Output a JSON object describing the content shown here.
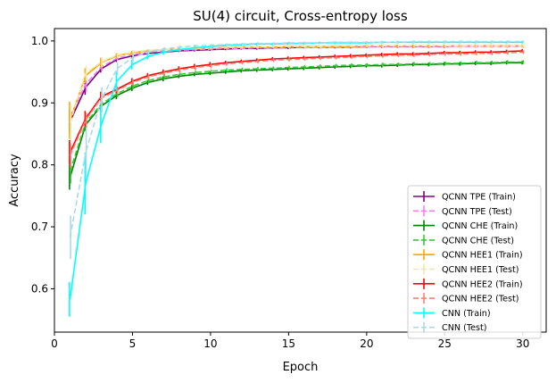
{
  "chart_data": {
    "type": "line",
    "title": "SU(4) circuit, Cross-entropy loss",
    "xlabel": "Epoch",
    "ylabel": "Accuracy",
    "xlim": [
      0,
      31.5
    ],
    "ylim": [
      0.53,
      1.02
    ],
    "xticks": [
      0,
      5,
      10,
      15,
      20,
      25,
      30
    ],
    "xtick_labels": [
      "0",
      "5",
      "10",
      "15",
      "20",
      "25",
      "30"
    ],
    "yticks": [
      0.6,
      0.7,
      0.8,
      0.9,
      1.0
    ],
    "ytick_labels": [
      "0.6",
      "0.7",
      "0.8",
      "0.9",
      "1.0"
    ],
    "grid": false,
    "legend_position": "lower-right",
    "x": [
      1,
      2,
      3,
      4,
      5,
      6,
      7,
      8,
      9,
      10,
      11,
      12,
      13,
      14,
      15,
      16,
      17,
      18,
      19,
      20,
      21,
      22,
      23,
      24,
      25,
      26,
      27,
      28,
      29,
      30
    ],
    "series": [
      {
        "name": "QCNN TPE (Train)",
        "color": "#800080",
        "dashed": false,
        "values": [
          0.87,
          0.925,
          0.955,
          0.97,
          0.976,
          0.98,
          0.982,
          0.984,
          0.985,
          0.986,
          0.987,
          0.988,
          0.988,
          0.989,
          0.989,
          0.99,
          0.99,
          0.99,
          0.99,
          0.991,
          0.991,
          0.991,
          0.991,
          0.991,
          0.991,
          0.992,
          0.992,
          0.992,
          0.992,
          0.992
        ],
        "err": [
          0.02,
          0.012,
          0.006,
          0.004,
          0.003,
          0.002,
          0.002,
          0.002,
          0.002,
          0.002,
          0.002,
          0.002,
          0.002,
          0.002,
          0.002,
          0.002,
          0.002,
          0.002,
          0.002,
          0.002,
          0.002,
          0.002,
          0.002,
          0.002,
          0.002,
          0.002,
          0.002,
          0.002,
          0.002,
          0.002
        ]
      },
      {
        "name": "QCNN TPE (Test)",
        "color": "#ee82ee",
        "dashed": true,
        "values": [
          0.878,
          0.93,
          0.958,
          0.972,
          0.978,
          0.982,
          0.984,
          0.985,
          0.986,
          0.987,
          0.988,
          0.988,
          0.989,
          0.989,
          0.99,
          0.99,
          0.99,
          0.99,
          0.99,
          0.99,
          0.991,
          0.991,
          0.991,
          0.991,
          0.991,
          0.991,
          0.991,
          0.991,
          0.991,
          0.991
        ],
        "err": [
          0.02,
          0.012,
          0.006,
          0.004,
          0.003,
          0.002,
          0.002,
          0.002,
          0.002,
          0.002,
          0.002,
          0.002,
          0.002,
          0.002,
          0.002,
          0.002,
          0.002,
          0.002,
          0.002,
          0.002,
          0.002,
          0.002,
          0.002,
          0.002,
          0.002,
          0.002,
          0.002,
          0.002,
          0.002,
          0.002
        ]
      },
      {
        "name": "QCNN CHE (Train)",
        "color": "#008000",
        "dashed": false,
        "values": [
          0.78,
          0.865,
          0.895,
          0.912,
          0.924,
          0.933,
          0.939,
          0.943,
          0.946,
          0.948,
          0.95,
          0.952,
          0.953,
          0.954,
          0.955,
          0.956,
          0.957,
          0.958,
          0.959,
          0.96,
          0.96,
          0.961,
          0.962,
          0.962,
          0.963,
          0.963,
          0.964,
          0.964,
          0.965,
          0.965
        ],
        "err": [
          0.02,
          0.01,
          0.008,
          0.006,
          0.005,
          0.004,
          0.004,
          0.003,
          0.003,
          0.003,
          0.003,
          0.003,
          0.003,
          0.003,
          0.003,
          0.003,
          0.003,
          0.003,
          0.003,
          0.003,
          0.003,
          0.003,
          0.003,
          0.003,
          0.003,
          0.003,
          0.003,
          0.003,
          0.003,
          0.003
        ]
      },
      {
        "name": "QCNN CHE (Test)",
        "color": "#32cd32",
        "dashed": true,
        "values": [
          0.79,
          0.868,
          0.898,
          0.915,
          0.927,
          0.936,
          0.942,
          0.946,
          0.949,
          0.951,
          0.953,
          0.954,
          0.955,
          0.956,
          0.957,
          0.958,
          0.959,
          0.96,
          0.961,
          0.961,
          0.962,
          0.962,
          0.963,
          0.963,
          0.964,
          0.964,
          0.965,
          0.965,
          0.966,
          0.966
        ],
        "err": [
          0.02,
          0.01,
          0.008,
          0.006,
          0.005,
          0.004,
          0.004,
          0.003,
          0.003,
          0.003,
          0.003,
          0.003,
          0.003,
          0.003,
          0.003,
          0.003,
          0.003,
          0.003,
          0.003,
          0.003,
          0.003,
          0.003,
          0.003,
          0.003,
          0.003,
          0.003,
          0.003,
          0.003,
          0.003,
          0.003
        ]
      },
      {
        "name": "QCNN HEE1 (Train)",
        "color": "#ffa500",
        "dashed": false,
        "values": [
          0.872,
          0.944,
          0.965,
          0.976,
          0.981,
          0.984,
          0.986,
          0.987,
          0.988,
          0.989,
          0.989,
          0.99,
          0.99,
          0.99,
          0.991,
          0.991,
          0.991,
          0.991,
          0.991,
          0.992,
          0.992,
          0.992,
          0.992,
          0.992,
          0.992,
          0.992,
          0.992,
          0.992,
          0.992,
          0.992
        ],
        "err": [
          0.03,
          0.012,
          0.008,
          0.004,
          0.003,
          0.002,
          0.002,
          0.002,
          0.002,
          0.002,
          0.002,
          0.002,
          0.002,
          0.002,
          0.002,
          0.002,
          0.002,
          0.002,
          0.002,
          0.002,
          0.002,
          0.002,
          0.002,
          0.002,
          0.002,
          0.002,
          0.002,
          0.002,
          0.002,
          0.002
        ]
      },
      {
        "name": "QCNN HEE1 (Test)",
        "color": "#eee8aa",
        "dashed": true,
        "values": [
          0.868,
          0.948,
          0.966,
          0.977,
          0.982,
          0.985,
          0.986,
          0.987,
          0.988,
          0.989,
          0.99,
          0.99,
          0.99,
          0.991,
          0.991,
          0.991,
          0.991,
          0.992,
          0.992,
          0.992,
          0.992,
          0.992,
          0.992,
          0.992,
          0.992,
          0.992,
          0.992,
          0.992,
          0.992,
          0.992
        ],
        "err": [
          0.03,
          0.012,
          0.008,
          0.004,
          0.003,
          0.002,
          0.002,
          0.002,
          0.002,
          0.002,
          0.002,
          0.002,
          0.002,
          0.002,
          0.002,
          0.002,
          0.002,
          0.002,
          0.002,
          0.002,
          0.002,
          0.002,
          0.002,
          0.002,
          0.002,
          0.002,
          0.002,
          0.002,
          0.002,
          0.002
        ]
      },
      {
        "name": "QCNN HEE2 (Train)",
        "color": "#ff0000",
        "dashed": false,
        "values": [
          0.82,
          0.875,
          0.91,
          0.922,
          0.935,
          0.944,
          0.95,
          0.955,
          0.959,
          0.962,
          0.965,
          0.967,
          0.969,
          0.971,
          0.972,
          0.973,
          0.974,
          0.975,
          0.976,
          0.977,
          0.978,
          0.979,
          0.979,
          0.98,
          0.981,
          0.981,
          0.982,
          0.982,
          0.983,
          0.984
        ],
        "err": [
          0.02,
          0.012,
          0.008,
          0.006,
          0.005,
          0.004,
          0.004,
          0.004,
          0.004,
          0.004,
          0.003,
          0.003,
          0.003,
          0.003,
          0.003,
          0.003,
          0.003,
          0.003,
          0.003,
          0.003,
          0.003,
          0.003,
          0.003,
          0.003,
          0.003,
          0.003,
          0.003,
          0.003,
          0.003,
          0.003
        ]
      },
      {
        "name": "QCNN HEE2 (Test)",
        "color": "#fa8072",
        "dashed": true,
        "values": [
          0.815,
          0.872,
          0.908,
          0.92,
          0.933,
          0.942,
          0.948,
          0.953,
          0.957,
          0.96,
          0.963,
          0.965,
          0.967,
          0.969,
          0.97,
          0.971,
          0.972,
          0.973,
          0.974,
          0.975,
          0.976,
          0.977,
          0.977,
          0.978,
          0.979,
          0.979,
          0.98,
          0.98,
          0.981,
          0.982
        ],
        "err": [
          0.02,
          0.012,
          0.008,
          0.006,
          0.005,
          0.004,
          0.004,
          0.004,
          0.004,
          0.004,
          0.003,
          0.003,
          0.003,
          0.003,
          0.003,
          0.003,
          0.003,
          0.003,
          0.003,
          0.003,
          0.003,
          0.003,
          0.003,
          0.003,
          0.003,
          0.003,
          0.003,
          0.003,
          0.003,
          0.003
        ]
      },
      {
        "name": "CNN (Train)",
        "color": "#00ffff",
        "dashed": false,
        "values": [
          0.583,
          0.77,
          0.865,
          0.935,
          0.962,
          0.975,
          0.982,
          0.986,
          0.989,
          0.991,
          0.993,
          0.994,
          0.995,
          0.995,
          0.996,
          0.996,
          0.997,
          0.997,
          0.997,
          0.997,
          0.998,
          0.998,
          0.998,
          0.998,
          0.998,
          0.998,
          0.998,
          0.998,
          0.998,
          0.998
        ],
        "err": [
          0.028,
          0.05,
          0.03,
          0.015,
          0.008,
          0.005,
          0.004,
          0.003,
          0.002,
          0.002,
          0.002,
          0.002,
          0.002,
          0.002,
          0.002,
          0.002,
          0.002,
          0.002,
          0.002,
          0.002,
          0.002,
          0.002,
          0.002,
          0.002,
          0.002,
          0.002,
          0.002,
          0.002,
          0.002,
          0.002
        ]
      },
      {
        "name": "CNN (Test)",
        "color": "#add8e6",
        "dashed": true,
        "values": [
          0.683,
          0.82,
          0.905,
          0.955,
          0.973,
          0.982,
          0.987,
          0.99,
          0.992,
          0.993,
          0.994,
          0.995,
          0.996,
          0.996,
          0.997,
          0.997,
          0.997,
          0.998,
          0.998,
          0.998,
          0.998,
          0.998,
          0.999,
          0.999,
          0.999,
          0.999,
          0.999,
          0.999,
          0.999,
          0.999
        ],
        "err": [
          0.035,
          0.04,
          0.02,
          0.01,
          0.006,
          0.004,
          0.003,
          0.003,
          0.002,
          0.002,
          0.002,
          0.002,
          0.002,
          0.002,
          0.002,
          0.002,
          0.002,
          0.002,
          0.002,
          0.002,
          0.002,
          0.002,
          0.002,
          0.002,
          0.002,
          0.002,
          0.002,
          0.002,
          0.002,
          0.002
        ]
      }
    ]
  }
}
